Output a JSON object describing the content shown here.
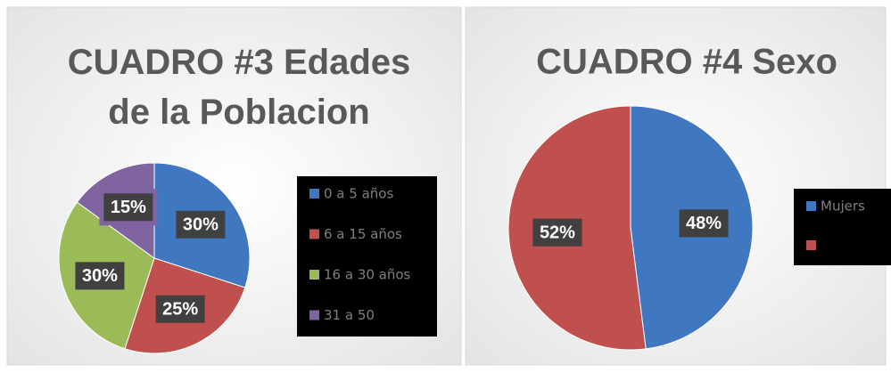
{
  "chart_data": [
    {
      "type": "pie",
      "title": "CUADRO #3 Edades de la Poblacion",
      "categories": [
        "0 a 5 años",
        "6 a 15 años",
        "16 a 30 años",
        "31 a 50"
      ],
      "values": [
        30,
        25,
        30,
        15
      ],
      "value_labels": [
        "30%",
        "25%",
        "30%",
        "15%"
      ],
      "colors": [
        "#3f78c0",
        "#c0504d",
        "#9bbb59",
        "#8064a2"
      ],
      "legend": "right"
    },
    {
      "type": "pie",
      "title": "CUADRO #4 Sexo",
      "categories": [
        "Mujers",
        null
      ],
      "values": [
        48,
        52
      ],
      "value_labels": [
        "48%",
        "52%"
      ],
      "colors": [
        "#3f78c0",
        "#c0504d"
      ],
      "legend": "right"
    }
  ]
}
